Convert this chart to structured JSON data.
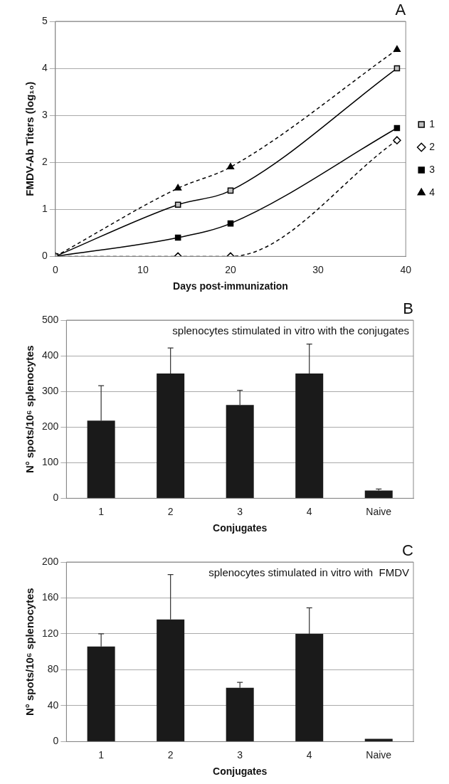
{
  "chart_data": [
    {
      "type": "line",
      "title": "A",
      "xlabel": "Days post-immunization",
      "ylabel": "FMDV-Ab Titers (log₁₀)",
      "xlim": [
        0,
        40
      ],
      "xticks": [
        0,
        10,
        20,
        30,
        40
      ],
      "ylim": [
        0,
        5
      ],
      "yticks": [
        0,
        1,
        2,
        3,
        4,
        5
      ],
      "grid": "y",
      "legend": "right",
      "series": [
        {
          "name": "1",
          "color": "#c0c0c0",
          "marker": "square",
          "line_style": "solid",
          "x": [
            0,
            14,
            20,
            39
          ],
          "values": [
            0,
            1.1,
            1.4,
            4.0
          ]
        },
        {
          "name": "2",
          "color": "#ffffff",
          "marker": "diamond",
          "line_style": "dashed",
          "x": [
            0,
            14,
            20,
            39
          ],
          "values": [
            0,
            0,
            0,
            2.47
          ]
        },
        {
          "name": "3",
          "color": "#000000",
          "marker": "square",
          "line_style": "solid",
          "x": [
            0,
            14,
            20,
            39
          ],
          "values": [
            0,
            0.4,
            0.7,
            2.73
          ]
        },
        {
          "name": "4",
          "color": "#000000",
          "marker": "triangle",
          "line_style": "dashed",
          "x": [
            0,
            14,
            20,
            39
          ],
          "values": [
            0,
            1.45,
            1.9,
            4.4
          ]
        }
      ]
    },
    {
      "type": "bar",
      "title": "B",
      "xlabel": "Conjugates",
      "ylabel": "N° spots/10⁶ splenocytes",
      "annotations": [
        "splenocytes stimulated in vitro with the conjugates"
      ],
      "categories": [
        "1",
        "2",
        "3",
        "4",
        "Naive"
      ],
      "ylim": [
        0,
        500
      ],
      "yticks": [
        0,
        100,
        200,
        300,
        400,
        500
      ],
      "grid": "y",
      "values": [
        218,
        350,
        262,
        350,
        22
      ],
      "color": "#1a1a1a",
      "errors": [
        [
          218,
          316
        ],
        [
          350,
          422
        ],
        [
          262,
          303
        ],
        [
          350,
          433
        ],
        [
          22,
          26
        ]
      ]
    },
    {
      "type": "bar",
      "title": "C",
      "xlabel": "Conjugates",
      "ylabel": "N° spots/10⁶ splenocytes",
      "annotations": [
        "splenocytes stimulated in vitro with  FMDV"
      ],
      "categories": [
        "1",
        "2",
        "3",
        "4",
        "Naive"
      ],
      "ylim": [
        0,
        200
      ],
      "yticks": [
        0,
        40,
        80,
        120,
        160,
        200
      ],
      "grid": "y",
      "values": [
        106,
        136,
        60,
        120,
        3
      ],
      "color": "#1a1a1a",
      "errors": [
        [
          106,
          120
        ],
        [
          136,
          186
        ],
        [
          60,
          66
        ],
        [
          120,
          149
        ],
        null
      ]
    }
  ]
}
